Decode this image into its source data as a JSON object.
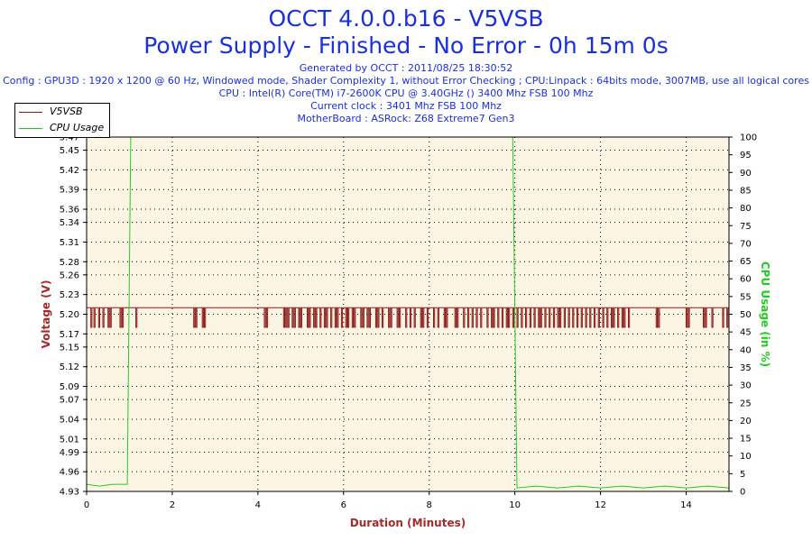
{
  "header": {
    "title": "OCCT 4.0.0.b16 - V5VSB",
    "subtitle": "Power Supply - Finished - No Error - 0h 15m 0s",
    "generated": "Generated by OCCT : 2011/08/25 18:30:52",
    "config": "Config : GPU3D : 1920 x 1200 @ 60 Hz, Windowed mode, Shader Complexity 1, without Error Checking ; CPU:Linpack : 64bits mode, 3007MB, use all logical cores",
    "cpu": "CPU : Intel(R) Core(TM) i7-2600K CPU @ 3.40GHz () 3400 Mhz FSB 100 Mhz",
    "clock": "Current clock : 3401 Mhz FSB 100 Mhz",
    "motherboard": "MotherBoard : ASRock: Z68 Extreme7 Gen3"
  },
  "colors": {
    "title": "#1a2fe0",
    "voltage": "#8b1a1a",
    "cpu": "#22cc22",
    "axis_label_left": "#a52a2a",
    "axis_label_right": "#22cc22",
    "plot_bg": "#fcf5e4"
  },
  "chart_data": {
    "type": "line",
    "xlabel": "Duration (Minutes)",
    "ylabel": "Voltage (V)",
    "y2label": "CPU Usage (in %)",
    "xlim": [
      0,
      15
    ],
    "ylim": [
      4.93,
      5.47
    ],
    "y2lim": [
      0,
      100
    ],
    "x_ticks": [
      "0",
      "2",
      "4",
      "6",
      "8",
      "10",
      "12",
      "14"
    ],
    "y_ticks": [
      "4.93",
      "4.96",
      "4.99",
      "5.01",
      "5.04",
      "5.07",
      "5.09",
      "5.12",
      "5.15",
      "5.17",
      "5.20",
      "5.23",
      "5.26",
      "5.28",
      "5.31",
      "5.34",
      "5.36",
      "5.39",
      "5.42",
      "5.45",
      "5.47"
    ],
    "y2_ticks": [
      "0",
      "5",
      "10",
      "15",
      "20",
      "25",
      "30",
      "35",
      "40",
      "45",
      "50",
      "55",
      "60",
      "65",
      "70",
      "75",
      "80",
      "85",
      "90",
      "95",
      "100"
    ],
    "grid": true,
    "legend": "top-left",
    "series": [
      {
        "name": "V5VSB",
        "axis": "left",
        "baseline": 5.21,
        "dips_to": 5.18,
        "dip_times": [
          0.1,
          0.17,
          0.28,
          0.38,
          0.5,
          0.55,
          0.78,
          0.83,
          1.15,
          2.5,
          2.55,
          2.7,
          2.75,
          4.15,
          4.2,
          4.6,
          4.65,
          4.7,
          4.8,
          4.85,
          4.95,
          5.0,
          5.15,
          5.2,
          5.3,
          5.35,
          5.45,
          5.55,
          5.6,
          5.7,
          5.8,
          5.85,
          5.95,
          6.05,
          6.1,
          6.2,
          6.25,
          6.4,
          6.45,
          6.55,
          6.6,
          6.75,
          6.8,
          6.9,
          7.05,
          7.1,
          7.25,
          7.3,
          7.45,
          7.55,
          7.65,
          7.8,
          7.85,
          7.95,
          8.1,
          8.2,
          8.35,
          8.4,
          8.6,
          8.65,
          8.8,
          8.9,
          9.0,
          9.1,
          9.2,
          9.35,
          9.45,
          9.5,
          9.6,
          9.7,
          9.8,
          9.85,
          9.95,
          10.05,
          10.15,
          10.25,
          10.35,
          10.45,
          10.55,
          10.6,
          10.7,
          10.8,
          10.9,
          11.0,
          11.05,
          11.15,
          11.25,
          11.35,
          11.45,
          11.55,
          11.65,
          11.75,
          11.85,
          11.95,
          12.05,
          12.15,
          12.25,
          12.3,
          12.4,
          12.5,
          12.55,
          12.65,
          13.3,
          13.35,
          14.0,
          14.05,
          14.4,
          14.45,
          14.6,
          14.85,
          14.95
        ]
      },
      {
        "name": "CPU Usage",
        "axis": "right",
        "points": [
          [
            0,
            2
          ],
          [
            0.3,
            1.5
          ],
          [
            0.6,
            2
          ],
          [
            0.95,
            2
          ],
          [
            1.03,
            100
          ],
          [
            9.95,
            100
          ],
          [
            10.05,
            1
          ],
          [
            10.5,
            1.5
          ],
          [
            11.0,
            1
          ],
          [
            11.5,
            1.5
          ],
          [
            12.0,
            1
          ],
          [
            12.5,
            1.5
          ],
          [
            13.0,
            1
          ],
          [
            13.5,
            1.5
          ],
          [
            14.0,
            1
          ],
          [
            14.5,
            1.5
          ],
          [
            15.0,
            1
          ]
        ]
      }
    ]
  }
}
